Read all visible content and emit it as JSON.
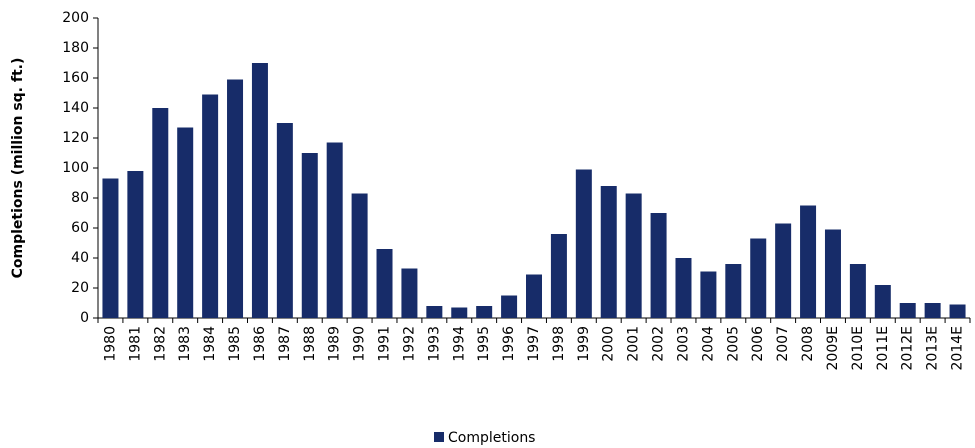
{
  "chart_data": {
    "type": "bar",
    "y_label": "Completions (million sq. ft.)",
    "categories": [
      "1980",
      "1981",
      "1982",
      "1983",
      "1984",
      "1985",
      "1986",
      "1987",
      "1988",
      "1989",
      "1990",
      "1991",
      "1992",
      "1993",
      "1994",
      "1995",
      "1996",
      "1997",
      "1998",
      "1999",
      "2000",
      "2001",
      "2002",
      "2003",
      "2004",
      "2005",
      "2006",
      "2007",
      "2008",
      "2009E",
      "2010E",
      "2011E",
      "2012E",
      "2013E",
      "2014E"
    ],
    "series": [
      {
        "name": "Completions",
        "color": "#172c69",
        "values": [
          93,
          98,
          140,
          127,
          149,
          159,
          170,
          130,
          110,
          117,
          83,
          46,
          33,
          8,
          7,
          8,
          15,
          29,
          56,
          99,
          88,
          83,
          70,
          40,
          31,
          36,
          53,
          63,
          75,
          59,
          36,
          22,
          10,
          10,
          9
        ]
      }
    ],
    "ylim": [
      0,
      200
    ],
    "yticks": [
      0,
      20,
      40,
      60,
      80,
      100,
      120,
      140,
      160,
      180,
      200
    ],
    "legend": "bottom"
  }
}
